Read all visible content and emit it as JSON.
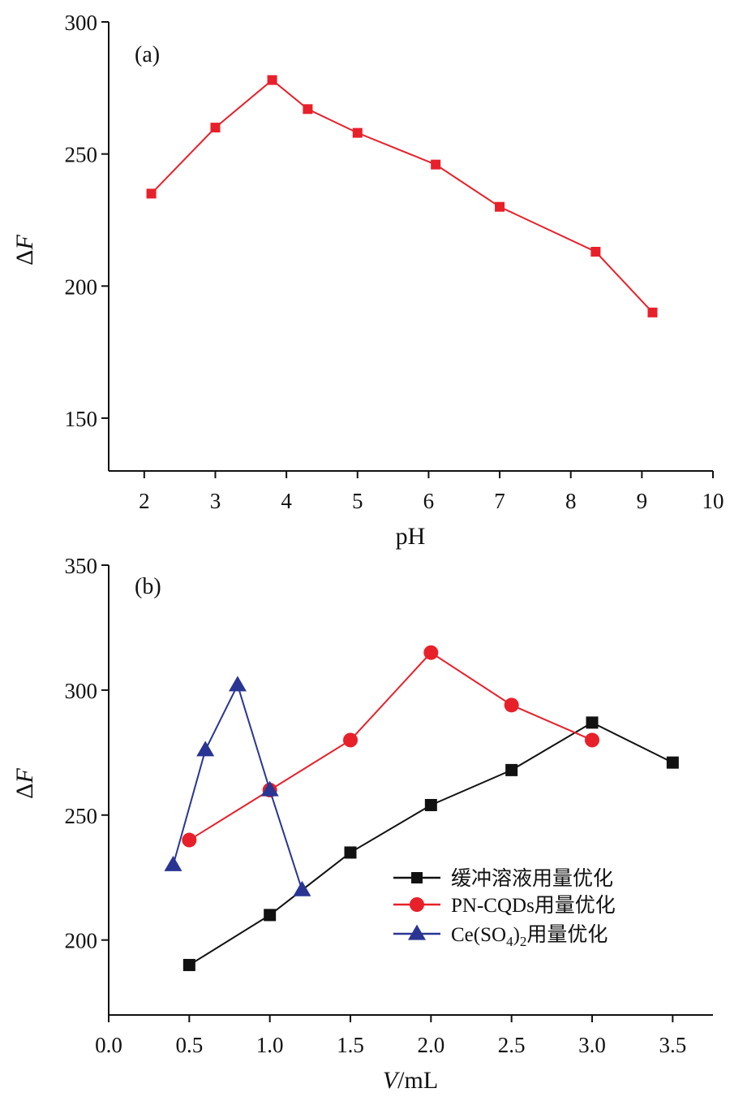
{
  "chart_data": [
    {
      "type": "line",
      "panel_label": "(a)",
      "xlabel": "pH",
      "ylabel": "ΔF",
      "xlim": [
        1.5,
        10
      ],
      "ylim": [
        130,
        300
      ],
      "xticks": [
        2,
        3,
        4,
        5,
        6,
        7,
        8,
        9,
        10
      ],
      "yticks": [
        150,
        200,
        250,
        300
      ],
      "grid": false,
      "series": [
        {
          "color": "#e8202a",
          "marker": "square",
          "x": [
            2.1,
            3.0,
            3.8,
            4.3,
            5.0,
            6.1,
            7.0,
            8.35,
            9.15
          ],
          "y": [
            235,
            260,
            278,
            267,
            258,
            246,
            230,
            213,
            190
          ]
        }
      ]
    },
    {
      "type": "line",
      "panel_label": "(b)",
      "xlabel_italic": "V",
      "xlabel_unit": "/mL",
      "ylabel": "ΔF",
      "xlim": [
        0,
        3.75
      ],
      "ylim": [
        170,
        350
      ],
      "xticks": [
        "0.0",
        "0.5",
        "1.0",
        "1.5",
        "2.0",
        "2.5",
        "3.0",
        "3.5"
      ],
      "yticks": [
        200,
        250,
        300,
        350
      ],
      "grid": false,
      "legend_position": "lower-right",
      "series": [
        {
          "name": "缓冲溶液用量优化",
          "color": "#111111",
          "marker": "square",
          "x": [
            0.5,
            1.0,
            1.5,
            2.0,
            2.5,
            3.0,
            3.5
          ],
          "y": [
            190,
            210,
            235,
            254,
            268,
            287,
            271
          ]
        },
        {
          "name": "PN-CQDs用量优化",
          "color": "#e8202a",
          "marker": "circle",
          "x": [
            0.5,
            1.0,
            1.5,
            2.0,
            2.5,
            3.0
          ],
          "y": [
            240,
            260,
            280,
            315,
            294,
            280
          ]
        },
        {
          "name_prefix": "Ce(SO",
          "name_sub": "4",
          "name_mid": ")",
          "name_sub2": "2",
          "name_suffix": "用量优化",
          "color": "#2a3593",
          "marker": "triangle",
          "x": [
            0.4,
            0.6,
            0.8,
            1.0,
            1.2
          ],
          "y": [
            230,
            276,
            302,
            260,
            220
          ]
        }
      ]
    }
  ]
}
